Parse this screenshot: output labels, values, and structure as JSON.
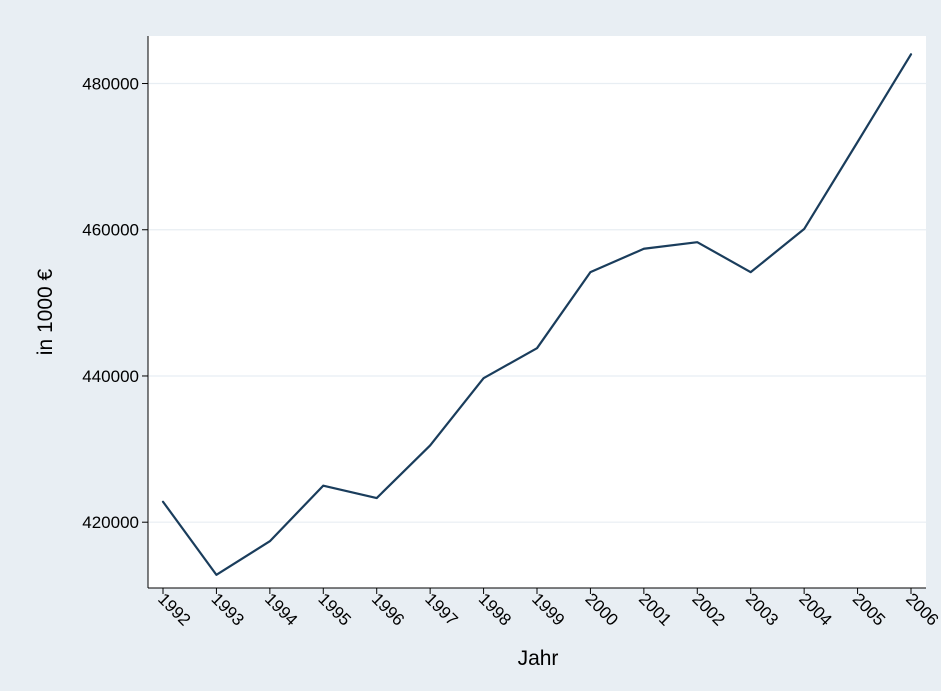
{
  "chart_data": {
    "type": "line",
    "title": "",
    "xlabel": "Jahr",
    "ylabel": "in 1000 €",
    "x": [
      1992,
      1993,
      1994,
      1995,
      1996,
      1997,
      1998,
      1999,
      2000,
      2001,
      2002,
      2003,
      2004,
      2005,
      2006
    ],
    "x_tick_labels": [
      "1992",
      "1993",
      "1994",
      "1995",
      "1996",
      "1997",
      "1998",
      "1999",
      "2000",
      "2001",
      "2002",
      "2003",
      "2004",
      "2005",
      "2006"
    ],
    "series": [
      {
        "values": [
          422800,
          412800,
          417400,
          425000,
          423300,
          430500,
          439700,
          443800,
          454200,
          457400,
          458300,
          454200,
          460100,
          472000,
          484000
        ]
      }
    ],
    "y_ticks": [
      420000,
      440000,
      460000,
      480000
    ],
    "y_tick_labels": [
      "420000",
      "440000",
      "460000",
      "480000"
    ],
    "ylim": [
      411000,
      486500
    ],
    "xlim": [
      1992,
      2006
    ],
    "grid": true,
    "x_tick_rotation": "diagonal",
    "colors": {
      "outer_background": "#e8eef3",
      "plot_background": "#ffffff",
      "line": "#1a3d5c",
      "gridline": "#e8eef3",
      "axis": "#000000"
    }
  }
}
